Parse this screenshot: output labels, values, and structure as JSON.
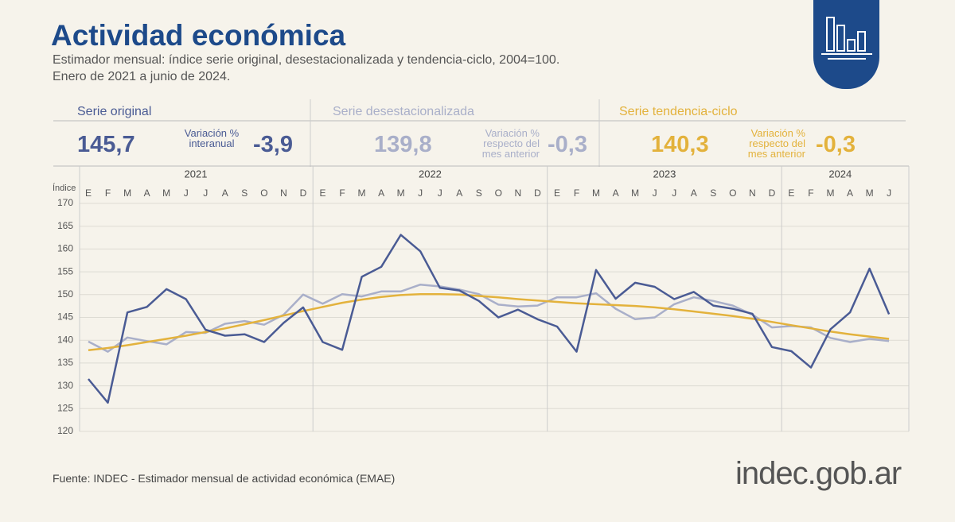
{
  "header": {
    "title": "Actividad económica",
    "subtitle": [
      "Estimador mensual: índice serie original, desestacionalizada y tendencia-ciclo, 2004=100.",
      "Enero de 2021 a junio de 2024."
    ]
  },
  "summary": [
    {
      "name": "Serie original",
      "value": "145,7",
      "change_label": "Variación % interanual",
      "change": "-3,9"
    },
    {
      "name": "Serie desestacionalizada",
      "value": "139,8",
      "change_label": "Variación % respecto del mes anterior",
      "change": "-0,3"
    },
    {
      "name": "Serie tendencia-ciclo",
      "value": "140,3",
      "change_label": "Variación % respecto del mes anterior",
      "change": "-0,3"
    }
  ],
  "chart_data": {
    "type": "line",
    "y_label": "Índice",
    "years": [
      "2021",
      "2022",
      "2023",
      "2024"
    ],
    "categories": [
      "E",
      "F",
      "M",
      "A",
      "M",
      "J",
      "J",
      "A",
      "S",
      "O",
      "N",
      "D",
      "E",
      "F",
      "M",
      "A",
      "M",
      "J",
      "J",
      "A",
      "S",
      "O",
      "N",
      "D",
      "E",
      "F",
      "M",
      "A",
      "M",
      "J",
      "J",
      "A",
      "S",
      "O",
      "N",
      "D",
      "E",
      "F",
      "M",
      "A",
      "M",
      "J"
    ],
    "series": [
      {
        "name": "Serie original",
        "color": "#4a5b94",
        "values": [
          131.5,
          126.3,
          146.1,
          147.3,
          151.2,
          149.0,
          142.3,
          141.0,
          141.3,
          139.6,
          143.8,
          147.2,
          139.6,
          137.9,
          153.9,
          156.1,
          163.1,
          159.5,
          151.5,
          150.9,
          148.6,
          145.0,
          146.7,
          144.6,
          143.0,
          137.5,
          155.4,
          149.1,
          152.6,
          151.7,
          149.0,
          150.6,
          147.6,
          146.9,
          145.8,
          138.5,
          137.6,
          134.0,
          142.4,
          146.1,
          155.7,
          145.7
        ]
      },
      {
        "name": "Serie desestacionalizada",
        "color": "#a9afc9",
        "values": [
          139.7,
          137.5,
          140.6,
          139.8,
          139.1,
          141.8,
          141.6,
          143.6,
          144.2,
          143.4,
          145.6,
          150.0,
          148.0,
          150.1,
          149.6,
          150.7,
          150.7,
          152.2,
          151.8,
          151.1,
          150.1,
          147.8,
          147.4,
          147.6,
          149.4,
          149.4,
          150.3,
          146.9,
          144.6,
          145.0,
          147.9,
          149.4,
          148.6,
          147.6,
          145.6,
          142.8,
          143.1,
          142.8,
          140.5,
          139.6,
          140.3,
          139.8
        ]
      },
      {
        "name": "Serie tendencia-ciclo",
        "color": "#e3b23c",
        "values": [
          137.8,
          138.3,
          138.9,
          139.6,
          140.3,
          141.0,
          141.8,
          142.6,
          143.5,
          144.4,
          145.4,
          146.4,
          147.3,
          148.2,
          148.9,
          149.5,
          149.9,
          150.1,
          150.1,
          150.0,
          149.7,
          149.4,
          149.0,
          148.7,
          148.4,
          148.1,
          147.9,
          147.7,
          147.5,
          147.2,
          146.8,
          146.3,
          145.8,
          145.3,
          144.7,
          144.0,
          143.3,
          142.6,
          141.9,
          141.3,
          140.8,
          140.3
        ]
      }
    ],
    "ylim": [
      120,
      170
    ],
    "yticks": [
      120,
      125,
      130,
      135,
      140,
      145,
      150,
      155,
      160,
      165,
      170
    ],
    "grid": true
  },
  "footer": {
    "source": "Fuente: INDEC - Estimador mensual de actividad económica (EMAE)",
    "logo": "indec.gob.ar"
  }
}
